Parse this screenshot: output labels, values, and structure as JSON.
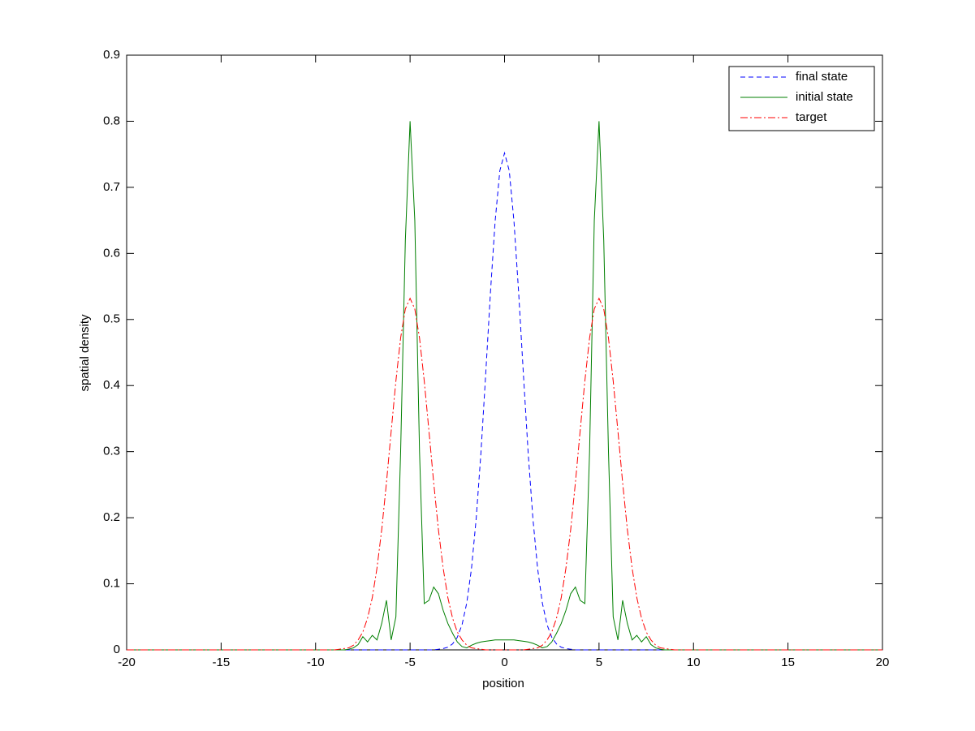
{
  "chart_data": {
    "type": "line",
    "xlabel": "position",
    "ylabel": "spatial density",
    "x": [
      -20,
      -9,
      -8.75,
      -8.5,
      -8.25,
      -8,
      -7.75,
      -7.5,
      -7.25,
      -7,
      -6.75,
      -6.5,
      -6.25,
      -6,
      -5.75,
      -5.5,
      -5.25,
      -5,
      -4.75,
      -4.5,
      -4.25,
      -4,
      -3.75,
      -3.5,
      -3.25,
      -3,
      -2.75,
      -2.5,
      -2.25,
      -2,
      -1.75,
      -1.5,
      -1.25,
      -1,
      -0.75,
      -0.5,
      -0.25,
      0,
      0.25,
      0.5,
      0.75,
      1,
      1.25,
      1.5,
      1.75,
      2,
      2.25,
      2.5,
      2.75,
      3,
      3.25,
      3.5,
      3.75,
      4,
      4.25,
      4.5,
      4.75,
      5,
      5.25,
      5.5,
      5.75,
      6,
      6.25,
      6.5,
      6.75,
      7,
      7.25,
      7.5,
      7.75,
      8,
      8.25,
      8.5,
      8.75,
      9,
      20
    ],
    "series": [
      {
        "name": "final state",
        "color": "#0000ff",
        "linestyle": "--",
        "values": [
          0,
          0,
          0,
          0,
          0,
          0,
          0,
          0,
          0,
          0,
          0,
          0,
          0,
          0,
          0,
          0,
          0,
          0,
          0,
          0,
          0,
          0,
          0,
          0.001,
          0.002,
          0.004,
          0.009,
          0.019,
          0.038,
          0.071,
          0.123,
          0.199,
          0.298,
          0.416,
          0.539,
          0.648,
          0.725,
          0.752,
          0.725,
          0.648,
          0.539,
          0.416,
          0.298,
          0.199,
          0.123,
          0.071,
          0.038,
          0.019,
          0.009,
          0.004,
          0.002,
          0.001,
          0,
          0,
          0,
          0,
          0,
          0,
          0,
          0,
          0,
          0,
          0,
          0,
          0,
          0,
          0,
          0,
          0,
          0,
          0,
          0,
          0,
          0,
          0
        ]
      },
      {
        "name": "initial state",
        "color": "#007f00",
        "linestyle": "-",
        "values": [
          0,
          0,
          0,
          0,
          0.001,
          0.003,
          0.008,
          0.02,
          0.012,
          0.022,
          0.015,
          0.04,
          0.075,
          0.015,
          0.05,
          0.3,
          0.62,
          0.8,
          0.65,
          0.3,
          0.07,
          0.075,
          0.095,
          0.085,
          0.06,
          0.04,
          0.025,
          0.012,
          0.005,
          0.003,
          0.007,
          0.01,
          0.012,
          0.013,
          0.014,
          0.015,
          0.015,
          0.015,
          0.015,
          0.015,
          0.014,
          0.013,
          0.012,
          0.01,
          0.007,
          0.003,
          0.005,
          0.012,
          0.025,
          0.04,
          0.06,
          0.085,
          0.095,
          0.075,
          0.07,
          0.3,
          0.65,
          0.8,
          0.62,
          0.3,
          0.05,
          0.015,
          0.075,
          0.04,
          0.015,
          0.022,
          0.012,
          0.02,
          0.008,
          0.003,
          0.001,
          0,
          0,
          0,
          0
        ]
      },
      {
        "name": "target",
        "color": "#ff0000",
        "linestyle": "-.",
        "values": [
          0,
          0,
          0.001,
          0.002,
          0.003,
          0.007,
          0.015,
          0.027,
          0.048,
          0.079,
          0.124,
          0.182,
          0.253,
          0.331,
          0.407,
          0.472,
          0.516,
          0.532,
          0.516,
          0.472,
          0.407,
          0.331,
          0.253,
          0.182,
          0.124,
          0.079,
          0.048,
          0.027,
          0.015,
          0.007,
          0.003,
          0.002,
          0.001,
          0,
          0,
          0,
          0,
          0,
          0,
          0,
          0,
          0,
          0.001,
          0.002,
          0.003,
          0.007,
          0.015,
          0.027,
          0.048,
          0.079,
          0.124,
          0.182,
          0.253,
          0.331,
          0.407,
          0.472,
          0.516,
          0.532,
          0.516,
          0.472,
          0.407,
          0.331,
          0.253,
          0.182,
          0.124,
          0.079,
          0.048,
          0.027,
          0.015,
          0.007,
          0.003,
          0.002,
          0.001,
          0,
          0
        ]
      }
    ],
    "xlim": [
      -20,
      20
    ],
    "xticks": [
      -20,
      -15,
      -10,
      -5,
      0,
      5,
      10,
      15,
      20
    ],
    "ylim": [
      0,
      0.9
    ],
    "yticks": [
      0,
      0.1,
      0.2,
      0.3,
      0.4,
      0.5,
      0.6,
      0.7,
      0.8,
      0.9
    ],
    "grid": false,
    "legend": "upper right"
  }
}
